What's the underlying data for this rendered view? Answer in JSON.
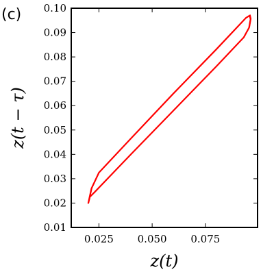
{
  "panel_label": "(c)",
  "chart_data": {
    "type": "line",
    "xlabel": "z(t)",
    "ylabel": "z(t − τ)",
    "xlim": [
      0.012,
      0.0995
    ],
    "ylim": [
      0.01,
      0.1
    ],
    "x_ticks": [
      0.025,
      0.05,
      0.075
    ],
    "x_tick_labels": [
      "0.025",
      "0.050",
      "0.075"
    ],
    "y_ticks": [
      0.01,
      0.02,
      0.03,
      0.04,
      0.05,
      0.06,
      0.07,
      0.08,
      0.09,
      0.1
    ],
    "y_tick_labels": [
      "0.01",
      "0.02",
      "0.03",
      "0.04",
      "0.05",
      "0.06",
      "0.07",
      "0.08",
      "0.09",
      "0.10"
    ],
    "grid": false,
    "series": [
      {
        "color": "#ff0000",
        "closed": true,
        "x": [
          0.02,
          0.0207,
          0.023,
          0.04,
          0.06,
          0.08,
          0.093,
          0.0955,
          0.0962,
          0.0958,
          0.094,
          0.08,
          0.06,
          0.04,
          0.025,
          0.0215,
          0.02
        ],
        "y": [
          0.02,
          0.0225,
          0.0245,
          0.04,
          0.058,
          0.076,
          0.088,
          0.092,
          0.0955,
          0.097,
          0.096,
          0.083,
          0.065,
          0.0465,
          0.0325,
          0.026,
          0.02
        ]
      }
    ]
  }
}
